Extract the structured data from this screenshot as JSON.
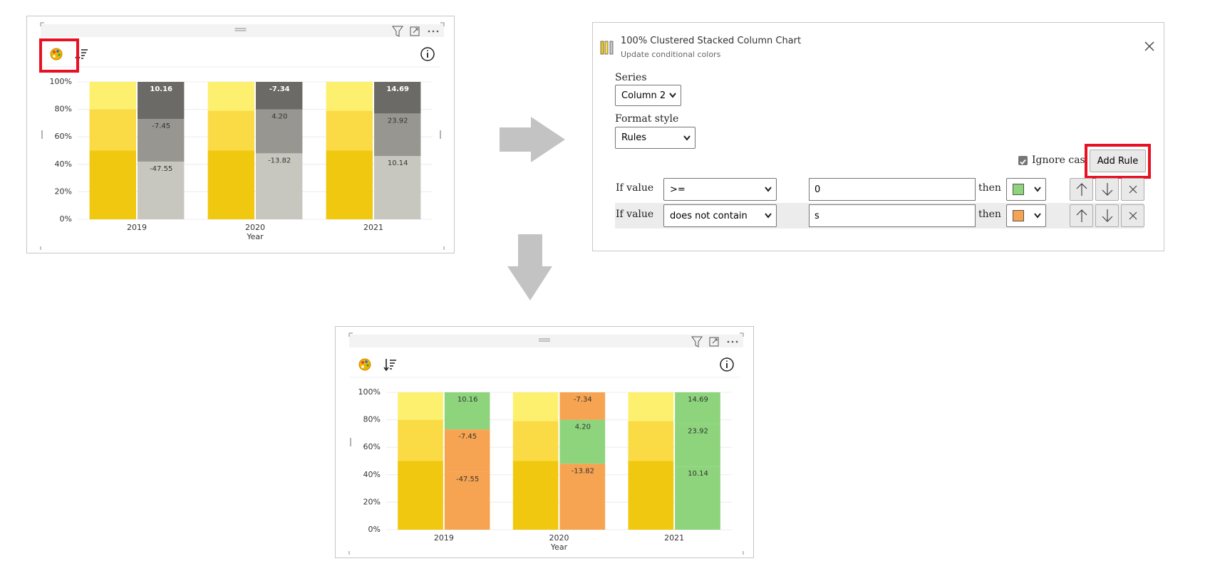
{
  "chart_data": [
    {
      "type": "bar",
      "x_label": "Year",
      "categories": [
        "2019",
        "2020",
        "2021"
      ],
      "ylim": [
        0,
        100
      ],
      "yticks": [
        {
          "value": 0,
          "label": "0%"
        },
        {
          "value": 20,
          "label": "20%"
        },
        {
          "value": 40,
          "label": "40%"
        },
        {
          "value": 60,
          "label": "60%"
        },
        {
          "value": 80,
          "label": "80%"
        },
        {
          "value": 100,
          "label": "100%"
        }
      ],
      "grid": true,
      "stacks": [
        [
          {
            "color": "#f0c80f",
            "values": [
              50,
              50,
              50
            ]
          },
          {
            "color": "#fadb45",
            "values": [
              30,
              29,
              29
            ]
          },
          {
            "color": "#fdf06e",
            "values": [
              20,
              21,
              21
            ]
          }
        ],
        [
          {
            "colors": [
              "#c8c7bf",
              "#c8c7bf",
              "#c8c7bf"
            ],
            "values": [
              42,
              48,
              46
            ],
            "data_labels": [
              "-47.55",
              "-13.82",
              "10.14"
            ],
            "label_color": "#333333"
          },
          {
            "colors": [
              "#979690",
              "#979690",
              "#979690"
            ],
            "values": [
              31,
              32,
              31
            ],
            "data_labels": [
              "-7.45",
              "4.20",
              "23.92"
            ],
            "label_color": "#333333"
          },
          {
            "colors": [
              "#6b6a66",
              "#6b6a66",
              "#6b6a66"
            ],
            "values": [
              27,
              20,
              23
            ],
            "data_labels": [
              "10.16",
              "-7.34",
              "14.69"
            ],
            "label_color": "#ffffff",
            "label_bold": true
          }
        ]
      ]
    },
    {
      "type": "bar",
      "x_label": "Year",
      "categories": [
        "2019",
        "2020",
        "2021"
      ],
      "ylim": [
        0,
        100
      ],
      "yticks": [
        {
          "value": 0,
          "label": "0%"
        },
        {
          "value": 20,
          "label": "20%"
        },
        {
          "value": 40,
          "label": "40%"
        },
        {
          "value": 60,
          "label": "60%"
        },
        {
          "value": 80,
          "label": "80%"
        },
        {
          "value": 100,
          "label": "100%"
        }
      ],
      "grid": true,
      "stacks": [
        [
          {
            "color": "#f0c80f",
            "values": [
              50,
              50,
              50
            ]
          },
          {
            "color": "#fadb45",
            "values": [
              30,
              29,
              29
            ]
          },
          {
            "color": "#fdf06e",
            "values": [
              20,
              21,
              21
            ]
          }
        ],
        [
          {
            "colors": [
              "#f7a452",
              "#f7a452",
              "#8dd47c"
            ],
            "values": [
              42,
              48,
              46
            ],
            "data_labels": [
              "-47.55",
              "-13.82",
              "10.14"
            ],
            "label_color": "#333333"
          },
          {
            "colors": [
              "#f7a452",
              "#8dd47c",
              "#8dd47c"
            ],
            "values": [
              31,
              32,
              31
            ],
            "data_labels": [
              "-7.45",
              "4.20",
              "23.92"
            ],
            "label_color": "#333333"
          },
          {
            "colors": [
              "#8dd47c",
              "#f7a452",
              "#8dd47c"
            ],
            "values": [
              27,
              20,
              23
            ],
            "data_labels": [
              "10.16",
              "-7.34",
              "14.69"
            ],
            "label_color": "#333333"
          }
        ]
      ]
    }
  ],
  "dialog": {
    "title": "100% Clustered Stacked Column Chart",
    "subtitle": "Update conditional colors",
    "series_label": "Series",
    "series_value": "Column 2",
    "format_label": "Format style",
    "format_value": "Rules",
    "ignore_case": "Ignore case",
    "add_rule": "Add Rule",
    "rules": [
      {
        "prefix": "If value",
        "operator": ">=",
        "value": "0",
        "then": "then",
        "color": "#8dd47c"
      },
      {
        "prefix": "If value",
        "operator": "does not contain",
        "value": "s",
        "then": "then",
        "color": "#f7a452"
      }
    ]
  }
}
